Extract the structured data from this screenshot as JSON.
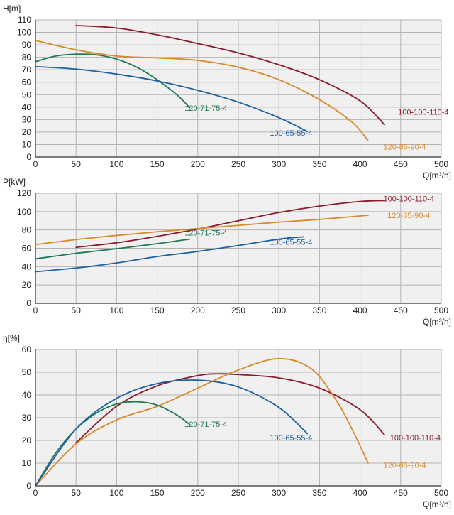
{
  "chart_data": [
    {
      "type": "line",
      "ylabel": "H[m]",
      "xlabel": "Q[m³/h]",
      "xlim": [
        0,
        500
      ],
      "ylim": [
        0,
        110
      ],
      "xticks": [
        0,
        50,
        100,
        150,
        200,
        250,
        300,
        350,
        400,
        450,
        500
      ],
      "yticks": [
        0,
        10,
        20,
        30,
        40,
        50,
        60,
        70,
        80,
        90,
        100,
        110
      ],
      "grid": true,
      "series": [
        {
          "name": "100-100-110-4",
          "color": "#8b1a2b",
          "x": [
            50,
            100,
            150,
            200,
            250,
            300,
            350,
            400,
            430
          ],
          "y": [
            105.5,
            103.5,
            98,
            91,
            83.5,
            74,
            62,
            45,
            26
          ]
        },
        {
          "name": "120-85-90-4",
          "color": "#d9892a",
          "x": [
            0,
            50,
            100,
            150,
            200,
            250,
            300,
            350,
            390,
            410
          ],
          "y": [
            93.5,
            86,
            81,
            79.5,
            77.5,
            72,
            62,
            46,
            28,
            13
          ]
        },
        {
          "name": "120-71-75-4",
          "color": "#1e7a4e",
          "x": [
            0,
            25,
            50,
            75,
            100,
            125,
            150,
            175,
            190
          ],
          "y": [
            76.5,
            81,
            82.5,
            82,
            78.5,
            72,
            62,
            49.5,
            39.5
          ]
        },
        {
          "name": "100-65-55-4",
          "color": "#1f5fa3",
          "x": [
            0,
            50,
            100,
            150,
            200,
            250,
            300,
            335
          ],
          "y": [
            72.5,
            70.5,
            66.5,
            61,
            53.5,
            44,
            31.5,
            20.5
          ]
        }
      ],
      "labels": [
        {
          "text": "100-100-110-4",
          "series": "100-100-110-4",
          "x": 478,
          "y": 34
        },
        {
          "text": "120-85-90-4",
          "series": "120-85-90-4",
          "x": 455,
          "y": 6
        },
        {
          "text": "120-71-75-4",
          "series": "120-71-75-4",
          "x": 210,
          "y": 37
        },
        {
          "text": "100-65-55-4",
          "series": "100-65-55-4",
          "x": 315,
          "y": 17
        }
      ]
    },
    {
      "type": "line",
      "ylabel": "P[kW]",
      "xlabel": "Q[m³/h]",
      "xlim": [
        0,
        500
      ],
      "ylim": [
        0,
        120
      ],
      "xticks": [
        0,
        50,
        100,
        150,
        200,
        250,
        300,
        350,
        400,
        450,
        500
      ],
      "yticks": [
        0,
        20,
        40,
        60,
        80,
        100,
        120
      ],
      "grid": true,
      "series": [
        {
          "name": "100-100-110-4",
          "color": "#8b1a2b",
          "x": [
            50,
            100,
            150,
            200,
            250,
            300,
            350,
            400,
            430
          ],
          "y": [
            61,
            66,
            73,
            81,
            90,
            99,
            106,
            111,
            112
          ]
        },
        {
          "name": "120-85-90-4",
          "color": "#d9892a",
          "x": [
            0,
            50,
            100,
            150,
            200,
            250,
            300,
            350,
            410
          ],
          "y": [
            64,
            69.5,
            74,
            78,
            81.5,
            85,
            88.5,
            91.5,
            96
          ]
        },
        {
          "name": "120-71-75-4",
          "color": "#1e7a4e",
          "x": [
            0,
            50,
            100,
            150,
            190
          ],
          "y": [
            48.5,
            54.5,
            59.5,
            65,
            70
          ]
        },
        {
          "name": "100-65-55-4",
          "color": "#1f5fa3",
          "x": [
            0,
            50,
            100,
            150,
            200,
            250,
            300,
            330
          ],
          "y": [
            34.5,
            38.5,
            44,
            51,
            56.5,
            63,
            70,
            72.5
          ]
        }
      ],
      "labels": [
        {
          "text": "100-100-110-4",
          "series": "100-100-110-4",
          "x": 460,
          "y": 111
        },
        {
          "text": "120-85-90-4",
          "series": "120-85-90-4",
          "x": 460,
          "y": 93
        },
        {
          "text": "120-71-75-4",
          "series": "120-71-75-4",
          "x": 210,
          "y": 74
        },
        {
          "text": "100-65-55-4",
          "series": "100-65-55-4",
          "x": 315,
          "y": 64
        }
      ]
    },
    {
      "type": "line",
      "ylabel": "η[%]",
      "xlabel": "Q[m³/h]",
      "xlim": [
        0,
        500
      ],
      "ylim": [
        0,
        60
      ],
      "xticks": [
        0,
        50,
        100,
        150,
        200,
        250,
        300,
        350,
        400,
        450,
        500
      ],
      "yticks": [
        0,
        10,
        20,
        30,
        40,
        50,
        60
      ],
      "grid": true,
      "series": [
        {
          "name": "100-100-110-4",
          "color": "#8b1a2b",
          "x": [
            50,
            100,
            150,
            200,
            225,
            250,
            300,
            350,
            400,
            430
          ],
          "y": [
            19,
            35,
            44,
            48.5,
            49.3,
            49,
            47.5,
            43,
            33.5,
            22.5
          ]
        },
        {
          "name": "120-85-90-4",
          "color": "#d9892a",
          "x": [
            0,
            50,
            100,
            150,
            200,
            250,
            300,
            340,
            370,
            390,
            410
          ],
          "y": [
            0,
            18.5,
            29,
            35,
            43,
            51,
            56,
            51.5,
            38,
            25,
            10
          ]
        },
        {
          "name": "120-71-75-4",
          "color": "#1e7a4e",
          "x": [
            0,
            25,
            50,
            75,
            100,
            125,
            150,
            175,
            190
          ],
          "y": [
            0,
            14.5,
            25,
            32,
            36,
            37,
            35.5,
            31,
            27
          ]
        },
        {
          "name": "100-65-55-4",
          "color": "#1f5fa3",
          "x": [
            0,
            50,
            100,
            150,
            200,
            250,
            300,
            335
          ],
          "y": [
            0,
            25,
            38.5,
            45,
            46.5,
            43.5,
            34.5,
            23
          ]
        }
      ],
      "labels": [
        {
          "text": "100-100-110-4",
          "series": "100-100-110-4",
          "x": 468,
          "y": 20
        },
        {
          "text": "120-85-90-4",
          "series": "120-85-90-4",
          "x": 455,
          "y": 8
        },
        {
          "text": "120-71-75-4",
          "series": "120-71-75-4",
          "x": 210,
          "y": 26
        },
        {
          "text": "100-65-55-4",
          "series": "100-65-55-4",
          "x": 315,
          "y": 20
        }
      ]
    }
  ]
}
